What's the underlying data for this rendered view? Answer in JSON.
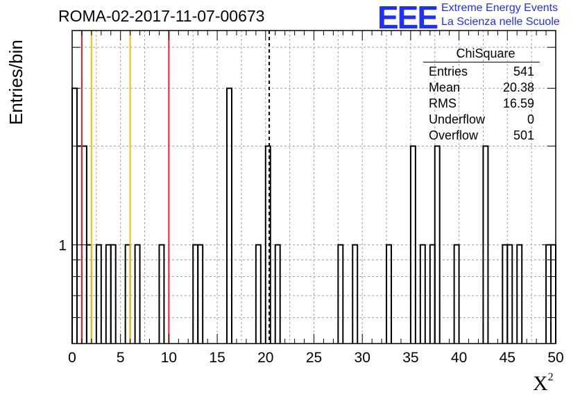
{
  "title": "ROMA-02-2017-11-07-00673",
  "logo": {
    "mark": "EEE",
    "line1": "Extreme Energy Events",
    "line2": "La Scienza nelle Scuole",
    "color": "#1f2fff"
  },
  "stats_box": {
    "title": "ChiSquare",
    "rows": [
      {
        "label": "Entries",
        "value": "541"
      },
      {
        "label": "Mean",
        "value": "20.38"
      },
      {
        "label": "RMS",
        "value": "16.59"
      },
      {
        "label": "Underflow",
        "value": "0"
      },
      {
        "label": "Overflow",
        "value": "501"
      }
    ]
  },
  "chart_data": {
    "type": "histogram",
    "xlabel": "X",
    "xlabel_sup": "2",
    "ylabel": "Entries/bin",
    "xlim": [
      0,
      50
    ],
    "ylim": [
      0.5,
      4.5
    ],
    "yscale": "log",
    "grid": true,
    "bin_width": 0.5,
    "x_ticks": [
      0,
      5,
      10,
      15,
      20,
      25,
      30,
      35,
      40,
      45,
      50
    ],
    "y_tick_labels": [
      {
        "value": 1,
        "label": "1"
      }
    ],
    "bins": [
      {
        "x": 0.0,
        "y": 3
      },
      {
        "x": 0.5,
        "y": 2
      },
      {
        "x": 1.0,
        "y": 2
      },
      {
        "x": 1.5,
        "y": 1
      },
      {
        "x": 2.5,
        "y": 1
      },
      {
        "x": 3.5,
        "y": 1
      },
      {
        "x": 4.0,
        "y": 1
      },
      {
        "x": 5.5,
        "y": 1
      },
      {
        "x": 6.5,
        "y": 1
      },
      {
        "x": 9.0,
        "y": 1
      },
      {
        "x": 12.5,
        "y": 1
      },
      {
        "x": 13.0,
        "y": 1
      },
      {
        "x": 16.0,
        "y": 3
      },
      {
        "x": 19.0,
        "y": 1
      },
      {
        "x": 20.0,
        "y": 2
      },
      {
        "x": 21.0,
        "y": 1
      },
      {
        "x": 27.5,
        "y": 1
      },
      {
        "x": 29.0,
        "y": 1
      },
      {
        "x": 32.5,
        "y": 1
      },
      {
        "x": 35.0,
        "y": 2
      },
      {
        "x": 36.0,
        "y": 1
      },
      {
        "x": 37.0,
        "y": 1
      },
      {
        "x": 37.5,
        "y": 2
      },
      {
        "x": 39.5,
        "y": 1
      },
      {
        "x": 42.5,
        "y": 2
      },
      {
        "x": 44.5,
        "y": 1
      },
      {
        "x": 45.0,
        "y": 1
      },
      {
        "x": 46.0,
        "y": 1
      },
      {
        "x": 49.0,
        "y": 1
      },
      {
        "x": 49.5,
        "y": 1
      }
    ],
    "reference_lines": [
      {
        "x": 1,
        "color": "#e3202b",
        "style": "solid"
      },
      {
        "x": 2,
        "color": "#f5c000",
        "style": "solid"
      },
      {
        "x": 6,
        "color": "#f5c000",
        "style": "solid"
      },
      {
        "x": 10,
        "color": "#e3202b",
        "style": "solid"
      },
      {
        "x": 20.38,
        "color": "#000000",
        "style": "dashed"
      }
    ]
  }
}
